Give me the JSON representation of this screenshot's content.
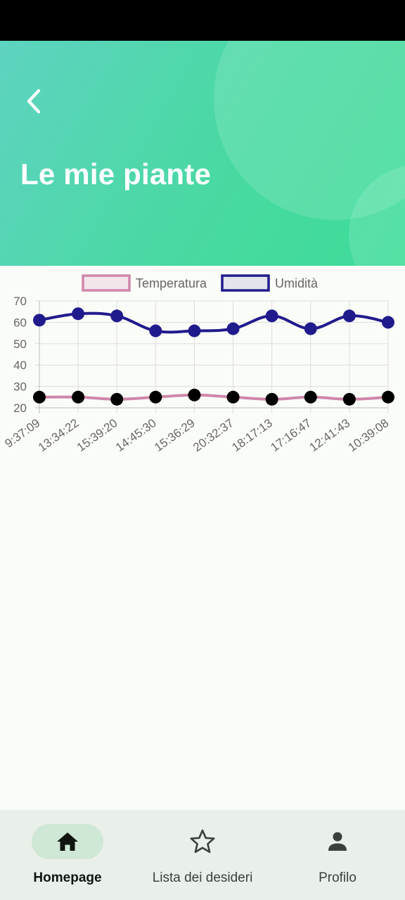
{
  "header": {
    "title": "Le mie piante",
    "back_icon": "chevron-left-icon"
  },
  "colors": {
    "header_gradient_start": "#5ed3c0",
    "header_gradient_end": "#3ddc97",
    "temperature_line": "#cf86aa",
    "temperature_points": "#000000",
    "humidity_line": "#201b8c",
    "humidity_points": "#201b8c",
    "nav_active_pill": "#cfe7d5",
    "nav_background": "#e9efe9"
  },
  "chart_data": {
    "type": "line",
    "title": "",
    "xlabel": "",
    "ylabel": "",
    "legend_position": "top-center",
    "grid": true,
    "ylim": [
      20,
      70
    ],
    "yticks": [
      20,
      30,
      40,
      50,
      60,
      70
    ],
    "categories": [
      "9:37:09",
      "13:34:22",
      "15:39:20",
      "14:45:30",
      "15:36:29",
      "20:32:37",
      "18:17:13",
      "17:16:47",
      "12:41:43",
      "10:39:08"
    ],
    "series": [
      {
        "name": "Temperatura",
        "color": "#cf86aa",
        "point_color": "#000000",
        "values": [
          25,
          25,
          24,
          25,
          26,
          25,
          24,
          25,
          24,
          25
        ]
      },
      {
        "name": "Umidità",
        "color": "#201b8c",
        "point_color": "#201b8c",
        "values": [
          61,
          64,
          63,
          56,
          56,
          57,
          63,
          57,
          63,
          60
        ]
      }
    ]
  },
  "bottom_nav": {
    "items": [
      {
        "label": "Homepage",
        "icon": "home-icon",
        "active": true
      },
      {
        "label": "Lista dei desideri",
        "icon": "star-outline-icon",
        "active": false
      },
      {
        "label": "Profilo",
        "icon": "person-icon",
        "active": false
      }
    ]
  }
}
